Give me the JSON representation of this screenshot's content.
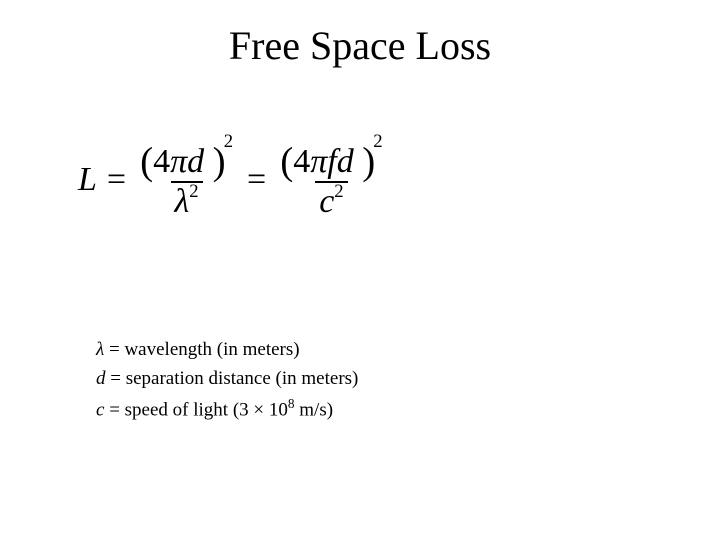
{
  "title": "Free Space Loss",
  "equation": {
    "L": "L",
    "eq": "=",
    "num1_open": "(",
    "num1_inner_4": "4",
    "num1_inner_pi": "π",
    "num1_inner_d": "d",
    "num1_close": ")",
    "num1_exp": "2",
    "den1_lambda": "λ",
    "den1_exp": "2",
    "num2_open": "(",
    "num2_inner_4": "4",
    "num2_inner_pi": "π",
    "num2_inner_f": "f",
    "num2_inner_d": "d",
    "num2_close": ")",
    "num2_exp": "2",
    "den2_c": "c",
    "den2_exp": "2"
  },
  "defs": {
    "lambda_sym": "λ",
    "lambda_text": " = wavelength (in meters)",
    "d_sym": "d",
    "d_text": " = separation distance (in meters)",
    "c_sym": "c",
    "c_text_pre": " = speed of light (3 × 10",
    "c_exp": "8",
    "c_text_post": " m/s)"
  },
  "style": {
    "background": "#ffffff",
    "text_color": "#000000",
    "title_fontsize": 40,
    "equation_fontsize": 34,
    "defs_fontsize": 19,
    "font_family": "Times New Roman"
  }
}
